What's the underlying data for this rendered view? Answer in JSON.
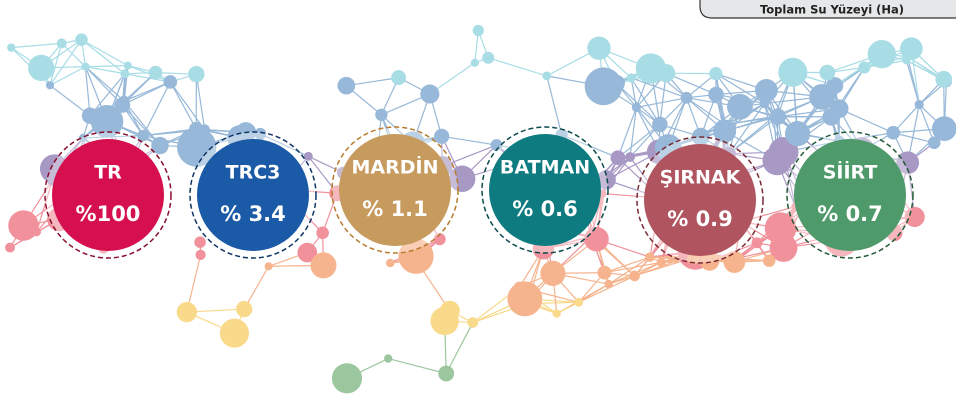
{
  "header": {
    "title": "Toplam Su Yüzeyi (Ha)"
  },
  "items": [
    {
      "name": "TR",
      "value": "%100"
    },
    {
      "name": "TRC3",
      "value": "% 3.4"
    },
    {
      "name": "MARDİN",
      "value": "% 1.1"
    },
    {
      "name": "BATMAN",
      "value": "% 0.6"
    },
    {
      "name": "ŞIRNAK",
      "value": "% 0.9"
    },
    {
      "name": "SİİRT",
      "value": "% 0.7"
    }
  ]
}
